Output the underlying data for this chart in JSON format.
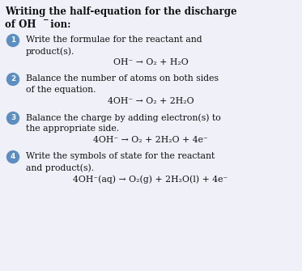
{
  "title_line1": "Writing the half-equation for the discharge",
  "title_line2_part1": "of OH",
  "title_line2_sup": "−",
  "title_line2_part2": " ion:",
  "bg_color": "#f0f0f8",
  "text_color": "#111111",
  "circle_color": "#5b8ec4",
  "figsize": [
    3.73,
    3.35
  ],
  "dpi": 100,
  "steps": [
    {
      "number": "1",
      "text_line1": "Write the formulae for the reactant and",
      "text_line2": "product(s).",
      "equation": "OH⁻ → O₂ + H₂O"
    },
    {
      "number": "2",
      "text_line1": "Balance the number of atoms on both sides",
      "text_line2": "of the equation.",
      "equation": "4OH⁻ → O₂ + 2H₂O"
    },
    {
      "number": "3",
      "text_line1": "Balance the charge by adding electron(s) to",
      "text_line2": "the appropriate side.",
      "equation": "4OH⁻ → O₂ + 2H₂O + 4e⁻"
    },
    {
      "number": "4",
      "text_line1": "Write the symbols of state for the reactant",
      "text_line2": "and product(s).",
      "equation": "4OH⁻(aq) → O₂(g) + 2H₂O(l) + 4e⁻"
    }
  ]
}
